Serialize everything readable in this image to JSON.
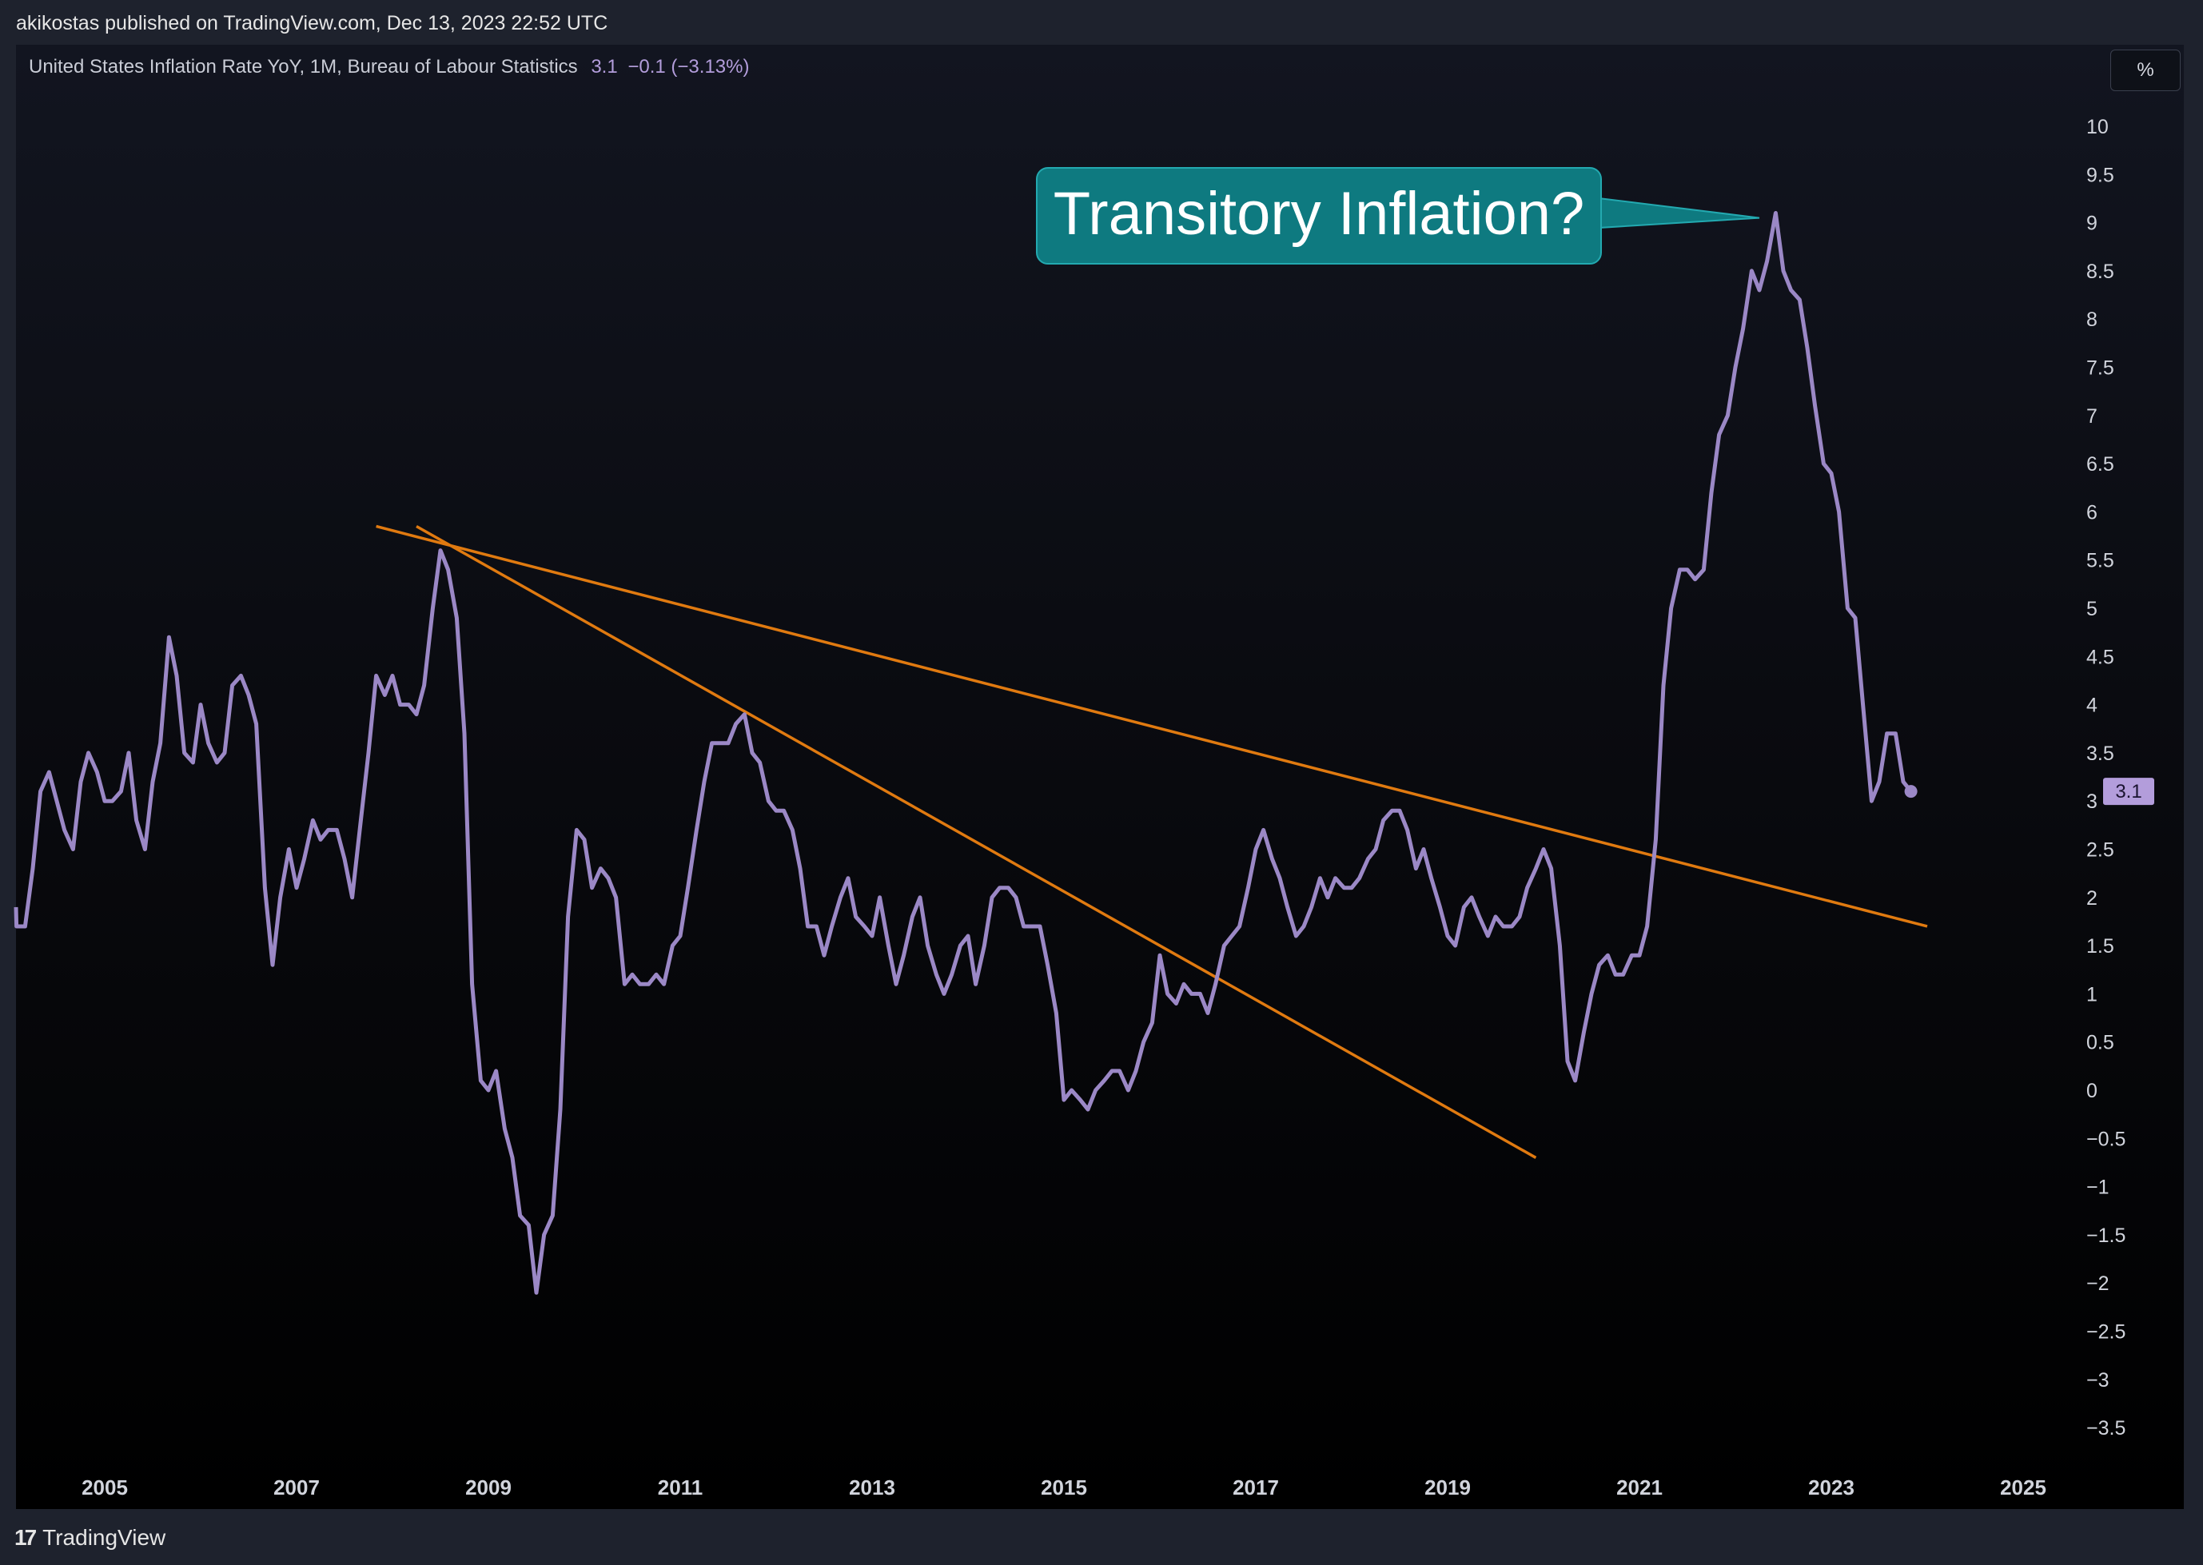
{
  "header": {
    "published": "akikostas published on TradingView.com, Dec 13, 2023 22:52 UTC"
  },
  "legend": {
    "title": "United States Inflation Rate YoY, 1M, Bureau of Labour Statistics",
    "value": "3.1",
    "change": "−0.1 (−3.13%)"
  },
  "scale_button": "%",
  "footer": {
    "brand": "TradingView",
    "logo": "17"
  },
  "annotation": {
    "text": "Transitory Inflation?",
    "bg": "#0e7a80"
  },
  "colors": {
    "series": "#9b88c6",
    "trendline": "#e07a10",
    "last_label_bg": "#b39ddb"
  },
  "chart_data": {
    "type": "line",
    "title": "United States Inflation Rate YoY, 1M, Bureau of Labour Statistics",
    "xlabel": "",
    "ylabel": "",
    "x_ticks": [
      "2005",
      "2007",
      "2009",
      "2011",
      "2013",
      "2015",
      "2017",
      "2019",
      "2021",
      "2023",
      "2025"
    ],
    "y_ticks": [
      "10",
      "9.5",
      "9",
      "8.5",
      "8",
      "7.5",
      "7",
      "6.5",
      "6",
      "5.5",
      "5",
      "4.5",
      "4",
      "3.5",
      "3",
      "2.5",
      "2",
      "1.5",
      "1",
      "0.5",
      "0",
      "−0.5",
      "−1",
      "−1.5",
      "−2",
      "−2.5",
      "−3",
      "−3.5"
    ],
    "ylim": [
      -3.75,
      10.25
    ],
    "xlim": [
      2004.1,
      2025.9
    ],
    "last_value": "3.1",
    "series": [
      {
        "name": "United States Inflation Rate YoY",
        "points": [
          [
            2004.0,
            1.9
          ],
          [
            2004.08,
            1.7
          ],
          [
            2004.17,
            1.7
          ],
          [
            2004.25,
            2.3
          ],
          [
            2004.33,
            3.1
          ],
          [
            2004.42,
            3.3
          ],
          [
            2004.5,
            3.0
          ],
          [
            2004.58,
            2.7
          ],
          [
            2004.67,
            2.5
          ],
          [
            2004.75,
            3.2
          ],
          [
            2004.83,
            3.5
          ],
          [
            2004.92,
            3.3
          ],
          [
            2005.0,
            3.0
          ],
          [
            2005.08,
            3.0
          ],
          [
            2005.17,
            3.1
          ],
          [
            2005.25,
            3.5
          ],
          [
            2005.33,
            2.8
          ],
          [
            2005.42,
            2.5
          ],
          [
            2005.5,
            3.2
          ],
          [
            2005.58,
            3.6
          ],
          [
            2005.67,
            4.7
          ],
          [
            2005.75,
            4.3
          ],
          [
            2005.83,
            3.5
          ],
          [
            2005.92,
            3.4
          ],
          [
            2006.0,
            4.0
          ],
          [
            2006.08,
            3.6
          ],
          [
            2006.17,
            3.4
          ],
          [
            2006.25,
            3.5
          ],
          [
            2006.33,
            4.2
          ],
          [
            2006.42,
            4.3
          ],
          [
            2006.5,
            4.1
          ],
          [
            2006.58,
            3.8
          ],
          [
            2006.67,
            2.1
          ],
          [
            2006.75,
            1.3
          ],
          [
            2006.83,
            2.0
          ],
          [
            2006.92,
            2.5
          ],
          [
            2007.0,
            2.1
          ],
          [
            2007.08,
            2.4
          ],
          [
            2007.17,
            2.8
          ],
          [
            2007.25,
            2.6
          ],
          [
            2007.33,
            2.7
          ],
          [
            2007.42,
            2.7
          ],
          [
            2007.5,
            2.4
          ],
          [
            2007.58,
            2.0
          ],
          [
            2007.67,
            2.8
          ],
          [
            2007.75,
            3.5
          ],
          [
            2007.83,
            4.3
          ],
          [
            2007.92,
            4.1
          ],
          [
            2008.0,
            4.3
          ],
          [
            2008.08,
            4.0
          ],
          [
            2008.17,
            4.0
          ],
          [
            2008.25,
            3.9
          ],
          [
            2008.33,
            4.2
          ],
          [
            2008.42,
            5.0
          ],
          [
            2008.5,
            5.6
          ],
          [
            2008.58,
            5.4
          ],
          [
            2008.67,
            4.9
          ],
          [
            2008.75,
            3.7
          ],
          [
            2008.83,
            1.1
          ],
          [
            2008.92,
            0.1
          ],
          [
            2009.0,
            0.0
          ],
          [
            2009.08,
            0.2
          ],
          [
            2009.17,
            -0.4
          ],
          [
            2009.25,
            -0.7
          ],
          [
            2009.33,
            -1.3
          ],
          [
            2009.42,
            -1.4
          ],
          [
            2009.5,
            -2.1
          ],
          [
            2009.58,
            -1.5
          ],
          [
            2009.67,
            -1.3
          ],
          [
            2009.75,
            -0.2
          ],
          [
            2009.83,
            1.8
          ],
          [
            2009.92,
            2.7
          ],
          [
            2010.0,
            2.6
          ],
          [
            2010.08,
            2.1
          ],
          [
            2010.17,
            2.3
          ],
          [
            2010.25,
            2.2
          ],
          [
            2010.33,
            2.0
          ],
          [
            2010.42,
            1.1
          ],
          [
            2010.5,
            1.2
          ],
          [
            2010.58,
            1.1
          ],
          [
            2010.67,
            1.1
          ],
          [
            2010.75,
            1.2
          ],
          [
            2010.83,
            1.1
          ],
          [
            2010.92,
            1.5
          ],
          [
            2011.0,
            1.6
          ],
          [
            2011.08,
            2.1
          ],
          [
            2011.17,
            2.7
          ],
          [
            2011.25,
            3.2
          ],
          [
            2011.33,
            3.6
          ],
          [
            2011.42,
            3.6
          ],
          [
            2011.5,
            3.6
          ],
          [
            2011.58,
            3.8
          ],
          [
            2011.67,
            3.9
          ],
          [
            2011.75,
            3.5
          ],
          [
            2011.83,
            3.4
          ],
          [
            2011.92,
            3.0
          ],
          [
            2012.0,
            2.9
          ],
          [
            2012.08,
            2.9
          ],
          [
            2012.17,
            2.7
          ],
          [
            2012.25,
            2.3
          ],
          [
            2012.33,
            1.7
          ],
          [
            2012.42,
            1.7
          ],
          [
            2012.5,
            1.4
          ],
          [
            2012.58,
            1.7
          ],
          [
            2012.67,
            2.0
          ],
          [
            2012.75,
            2.2
          ],
          [
            2012.83,
            1.8
          ],
          [
            2012.92,
            1.7
          ],
          [
            2013.0,
            1.6
          ],
          [
            2013.08,
            2.0
          ],
          [
            2013.17,
            1.5
          ],
          [
            2013.25,
            1.1
          ],
          [
            2013.33,
            1.4
          ],
          [
            2013.42,
            1.8
          ],
          [
            2013.5,
            2.0
          ],
          [
            2013.58,
            1.5
          ],
          [
            2013.67,
            1.2
          ],
          [
            2013.75,
            1.0
          ],
          [
            2013.83,
            1.2
          ],
          [
            2013.92,
            1.5
          ],
          [
            2014.0,
            1.6
          ],
          [
            2014.08,
            1.1
          ],
          [
            2014.17,
            1.5
          ],
          [
            2014.25,
            2.0
          ],
          [
            2014.33,
            2.1
          ],
          [
            2014.42,
            2.1
          ],
          [
            2014.5,
            2.0
          ],
          [
            2014.58,
            1.7
          ],
          [
            2014.67,
            1.7
          ],
          [
            2014.75,
            1.7
          ],
          [
            2014.83,
            1.3
          ],
          [
            2014.92,
            0.8
          ],
          [
            2015.0,
            -0.1
          ],
          [
            2015.08,
            0.0
          ],
          [
            2015.17,
            -0.1
          ],
          [
            2015.25,
            -0.2
          ],
          [
            2015.33,
            0.0
          ],
          [
            2015.42,
            0.1
          ],
          [
            2015.5,
            0.2
          ],
          [
            2015.58,
            0.2
          ],
          [
            2015.67,
            0.0
          ],
          [
            2015.75,
            0.2
          ],
          [
            2015.83,
            0.5
          ],
          [
            2015.92,
            0.7
          ],
          [
            2016.0,
            1.4
          ],
          [
            2016.08,
            1.0
          ],
          [
            2016.17,
            0.9
          ],
          [
            2016.25,
            1.1
          ],
          [
            2016.33,
            1.0
          ],
          [
            2016.42,
            1.0
          ],
          [
            2016.5,
            0.8
          ],
          [
            2016.58,
            1.1
          ],
          [
            2016.67,
            1.5
          ],
          [
            2016.75,
            1.6
          ],
          [
            2016.83,
            1.7
          ],
          [
            2016.92,
            2.1
          ],
          [
            2017.0,
            2.5
          ],
          [
            2017.08,
            2.7
          ],
          [
            2017.17,
            2.4
          ],
          [
            2017.25,
            2.2
          ],
          [
            2017.33,
            1.9
          ],
          [
            2017.42,
            1.6
          ],
          [
            2017.5,
            1.7
          ],
          [
            2017.58,
            1.9
          ],
          [
            2017.67,
            2.2
          ],
          [
            2017.75,
            2.0
          ],
          [
            2017.83,
            2.2
          ],
          [
            2017.92,
            2.1
          ],
          [
            2018.0,
            2.1
          ],
          [
            2018.08,
            2.2
          ],
          [
            2018.17,
            2.4
          ],
          [
            2018.25,
            2.5
          ],
          [
            2018.33,
            2.8
          ],
          [
            2018.42,
            2.9
          ],
          [
            2018.5,
            2.9
          ],
          [
            2018.58,
            2.7
          ],
          [
            2018.67,
            2.3
          ],
          [
            2018.75,
            2.5
          ],
          [
            2018.83,
            2.2
          ],
          [
            2018.92,
            1.9
          ],
          [
            2019.0,
            1.6
          ],
          [
            2019.08,
            1.5
          ],
          [
            2019.17,
            1.9
          ],
          [
            2019.25,
            2.0
          ],
          [
            2019.33,
            1.8
          ],
          [
            2019.42,
            1.6
          ],
          [
            2019.5,
            1.8
          ],
          [
            2019.58,
            1.7
          ],
          [
            2019.67,
            1.7
          ],
          [
            2019.75,
            1.8
          ],
          [
            2019.83,
            2.1
          ],
          [
            2019.92,
            2.3
          ],
          [
            2020.0,
            2.5
          ],
          [
            2020.08,
            2.3
          ],
          [
            2020.17,
            1.5
          ],
          [
            2020.25,
            0.3
          ],
          [
            2020.33,
            0.1
          ],
          [
            2020.42,
            0.6
          ],
          [
            2020.5,
            1.0
          ],
          [
            2020.58,
            1.3
          ],
          [
            2020.67,
            1.4
          ],
          [
            2020.75,
            1.2
          ],
          [
            2020.83,
            1.2
          ],
          [
            2020.92,
            1.4
          ],
          [
            2021.0,
            1.4
          ],
          [
            2021.08,
            1.7
          ],
          [
            2021.17,
            2.6
          ],
          [
            2021.25,
            4.2
          ],
          [
            2021.33,
            5.0
          ],
          [
            2021.42,
            5.4
          ],
          [
            2021.5,
            5.4
          ],
          [
            2021.58,
            5.3
          ],
          [
            2021.67,
            5.4
          ],
          [
            2021.75,
            6.2
          ],
          [
            2021.83,
            6.8
          ],
          [
            2021.92,
            7.0
          ],
          [
            2022.0,
            7.5
          ],
          [
            2022.08,
            7.9
          ],
          [
            2022.17,
            8.5
          ],
          [
            2022.25,
            8.3
          ],
          [
            2022.33,
            8.6
          ],
          [
            2022.42,
            9.1
          ],
          [
            2022.5,
            8.5
          ],
          [
            2022.58,
            8.3
          ],
          [
            2022.67,
            8.2
          ],
          [
            2022.75,
            7.7
          ],
          [
            2022.83,
            7.1
          ],
          [
            2022.92,
            6.5
          ],
          [
            2023.0,
            6.4
          ],
          [
            2023.08,
            6.0
          ],
          [
            2023.17,
            5.0
          ],
          [
            2023.25,
            4.9
          ],
          [
            2023.33,
            4.0
          ],
          [
            2023.42,
            3.0
          ],
          [
            2023.5,
            3.2
          ],
          [
            2023.58,
            3.7
          ],
          [
            2023.67,
            3.7
          ],
          [
            2023.75,
            3.2
          ],
          [
            2023.83,
            3.1
          ]
        ]
      }
    ],
    "trendlines": [
      {
        "from": [
          2007.83,
          5.85
        ],
        "to": [
          2024.0,
          1.7
        ]
      },
      {
        "from": [
          2008.25,
          5.85
        ],
        "to": [
          2019.92,
          -0.7
        ]
      }
    ],
    "annotation_target": [
      2022.25,
      9.05
    ]
  }
}
